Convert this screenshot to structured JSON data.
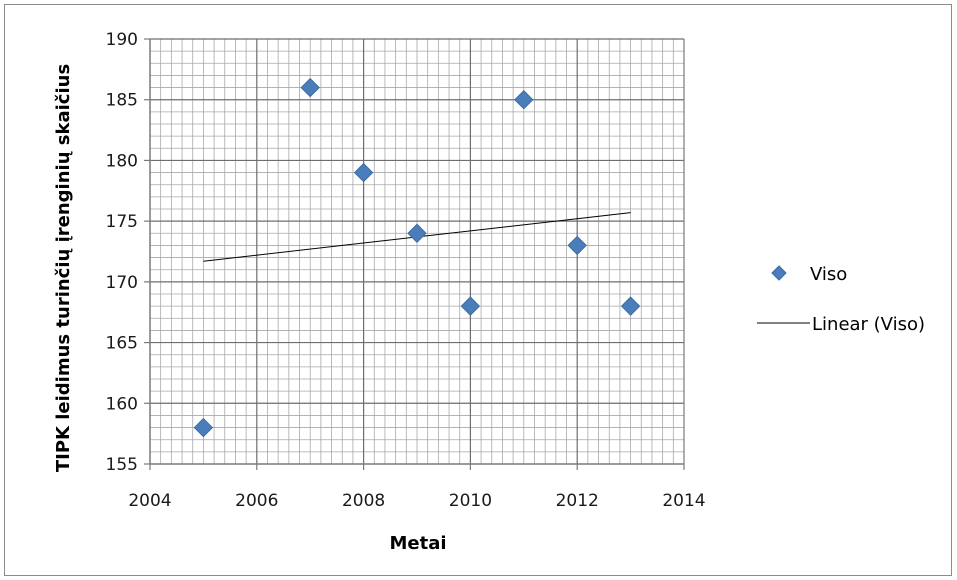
{
  "chart_data": {
    "type": "scatter",
    "title": "",
    "xlabel": "Metai",
    "ylabel": "TIPK leidimus turinčių įrenginių skaičius",
    "xlim": [
      2004,
      2014
    ],
    "ylim": [
      155,
      190
    ],
    "x_major_step": 2,
    "y_major_step": 5,
    "grid": "major and minor",
    "legend_position": "right",
    "series": [
      {
        "name": "Viso",
        "marker": "diamond",
        "color": "#4a7ebb",
        "points": [
          {
            "x": 2005,
            "y": 158
          },
          {
            "x": 2007,
            "y": 186
          },
          {
            "x": 2008,
            "y": 179
          },
          {
            "x": 2009,
            "y": 174
          },
          {
            "x": 2010,
            "y": 168
          },
          {
            "x": 2011,
            "y": 185
          },
          {
            "x": 2012,
            "y": 173
          },
          {
            "x": 2013,
            "y": 168
          }
        ]
      }
    ],
    "trendline": {
      "name": "Linear (Viso)",
      "type": "linear",
      "color": "#000000",
      "x": [
        2005,
        2013
      ],
      "y": [
        171.7,
        175.7
      ]
    }
  }
}
